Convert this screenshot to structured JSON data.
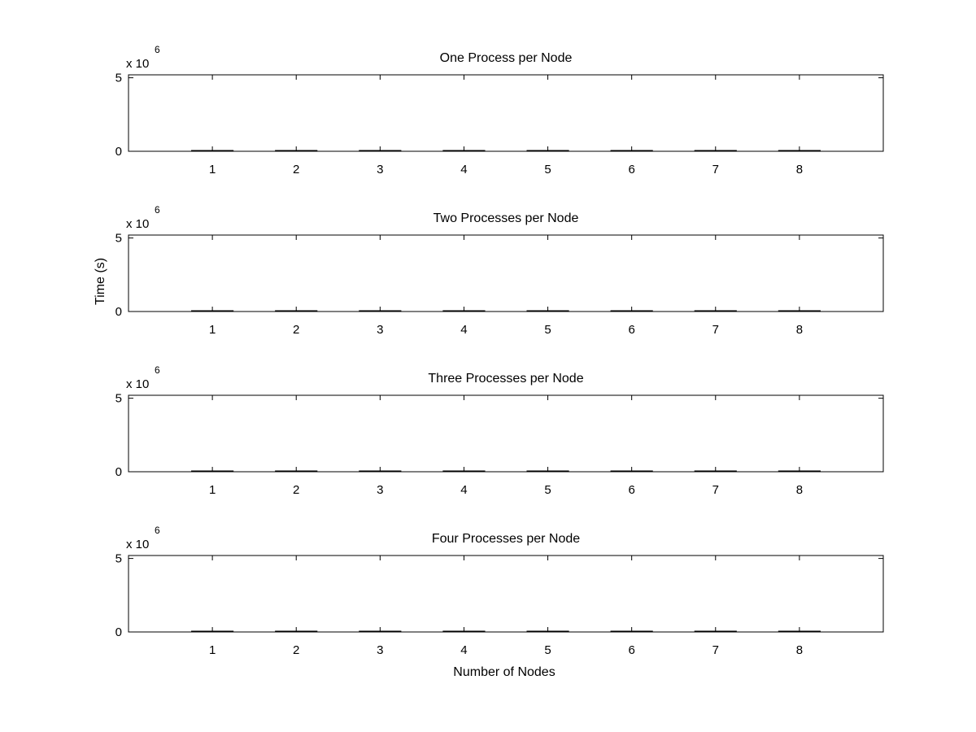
{
  "figure": {
    "xlabel": "Number of Nodes",
    "ylabel": "Time (s)",
    "colors": {
      "background": "#ffffff",
      "axes": "#000000",
      "data": "#000000"
    }
  },
  "chart_data": [
    {
      "type": "bar",
      "title": "One Process per Node",
      "categories": [
        "1",
        "2",
        "3",
        "4",
        "5",
        "6",
        "7",
        "8"
      ],
      "values": [
        0,
        0,
        0,
        0,
        0,
        0,
        0,
        0
      ],
      "xlim": [
        0,
        9
      ],
      "ylim": [
        0,
        5200000
      ],
      "yticks": [
        0,
        5
      ],
      "y_exponent_base": "x 10",
      "y_exponent_power": "6",
      "grid": false
    },
    {
      "type": "bar",
      "title": "Two Processes per Node",
      "categories": [
        "1",
        "2",
        "3",
        "4",
        "5",
        "6",
        "7",
        "8"
      ],
      "values": [
        0,
        0,
        0,
        0,
        0,
        0,
        0,
        0
      ],
      "xlim": [
        0,
        9
      ],
      "ylim": [
        0,
        5200000
      ],
      "yticks": [
        0,
        5
      ],
      "y_exponent_base": "x 10",
      "y_exponent_power": "6",
      "grid": false
    },
    {
      "type": "bar",
      "title": "Three Processes per Node",
      "categories": [
        "1",
        "2",
        "3",
        "4",
        "5",
        "6",
        "7",
        "8"
      ],
      "values": [
        0,
        0,
        0,
        0,
        0,
        0,
        0,
        0
      ],
      "xlim": [
        0,
        9
      ],
      "ylim": [
        0,
        5200000
      ],
      "yticks": [
        0,
        5
      ],
      "y_exponent_base": "x 10",
      "y_exponent_power": "6",
      "grid": false
    },
    {
      "type": "bar",
      "title": "Four Processes per Node",
      "categories": [
        "1",
        "2",
        "3",
        "4",
        "5",
        "6",
        "7",
        "8"
      ],
      "values": [
        0,
        0,
        0,
        0,
        0,
        0,
        0,
        0
      ],
      "xlim": [
        0,
        9
      ],
      "ylim": [
        0,
        5200000
      ],
      "yticks": [
        0,
        5
      ],
      "y_exponent_base": "x 10",
      "y_exponent_power": "6",
      "grid": false
    }
  ]
}
